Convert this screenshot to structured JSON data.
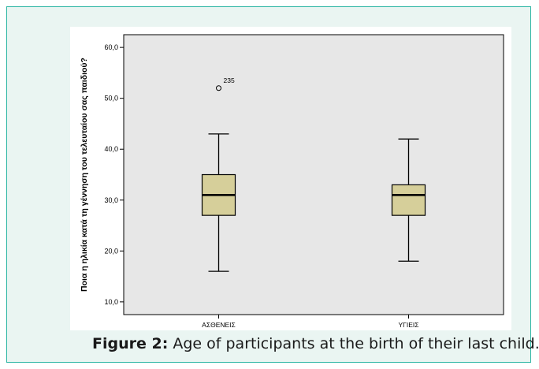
{
  "caption": {
    "label": "Figure 2:",
    "text": " Age of participants at the birth of their last child."
  },
  "chart_data": {
    "type": "box",
    "ylabel": "Ποια η ηλικία κατά τη γέννηση του τελευταίου σας παιδιού?",
    "xlabel": "",
    "ylim": [
      7.5,
      62.5
    ],
    "yticks": [
      "10,0",
      "20,0",
      "30,0",
      "40,0",
      "50,0",
      "60,0"
    ],
    "ytick_values": [
      10,
      20,
      30,
      40,
      50,
      60
    ],
    "grid": false,
    "colors": {
      "plot_bg": "#e7e7e7",
      "box_fill": "#d6cf9a",
      "stroke": "#000000"
    },
    "categories": [
      "ΑΣΘΕΝΕΙΣ",
      "ΥΓΙΕΙΣ"
    ],
    "boxes": [
      {
        "category": "ΑΣΘΕΝΕΙΣ",
        "min": 16,
        "q1": 27,
        "median": 31,
        "q3": 35,
        "max": 43,
        "outliers": [
          {
            "value": 52,
            "label": "235"
          }
        ]
      },
      {
        "category": "ΥΓΙΕΙΣ",
        "min": 18,
        "q1": 27,
        "median": 31,
        "q3": 33,
        "max": 42,
        "outliers": []
      }
    ]
  }
}
